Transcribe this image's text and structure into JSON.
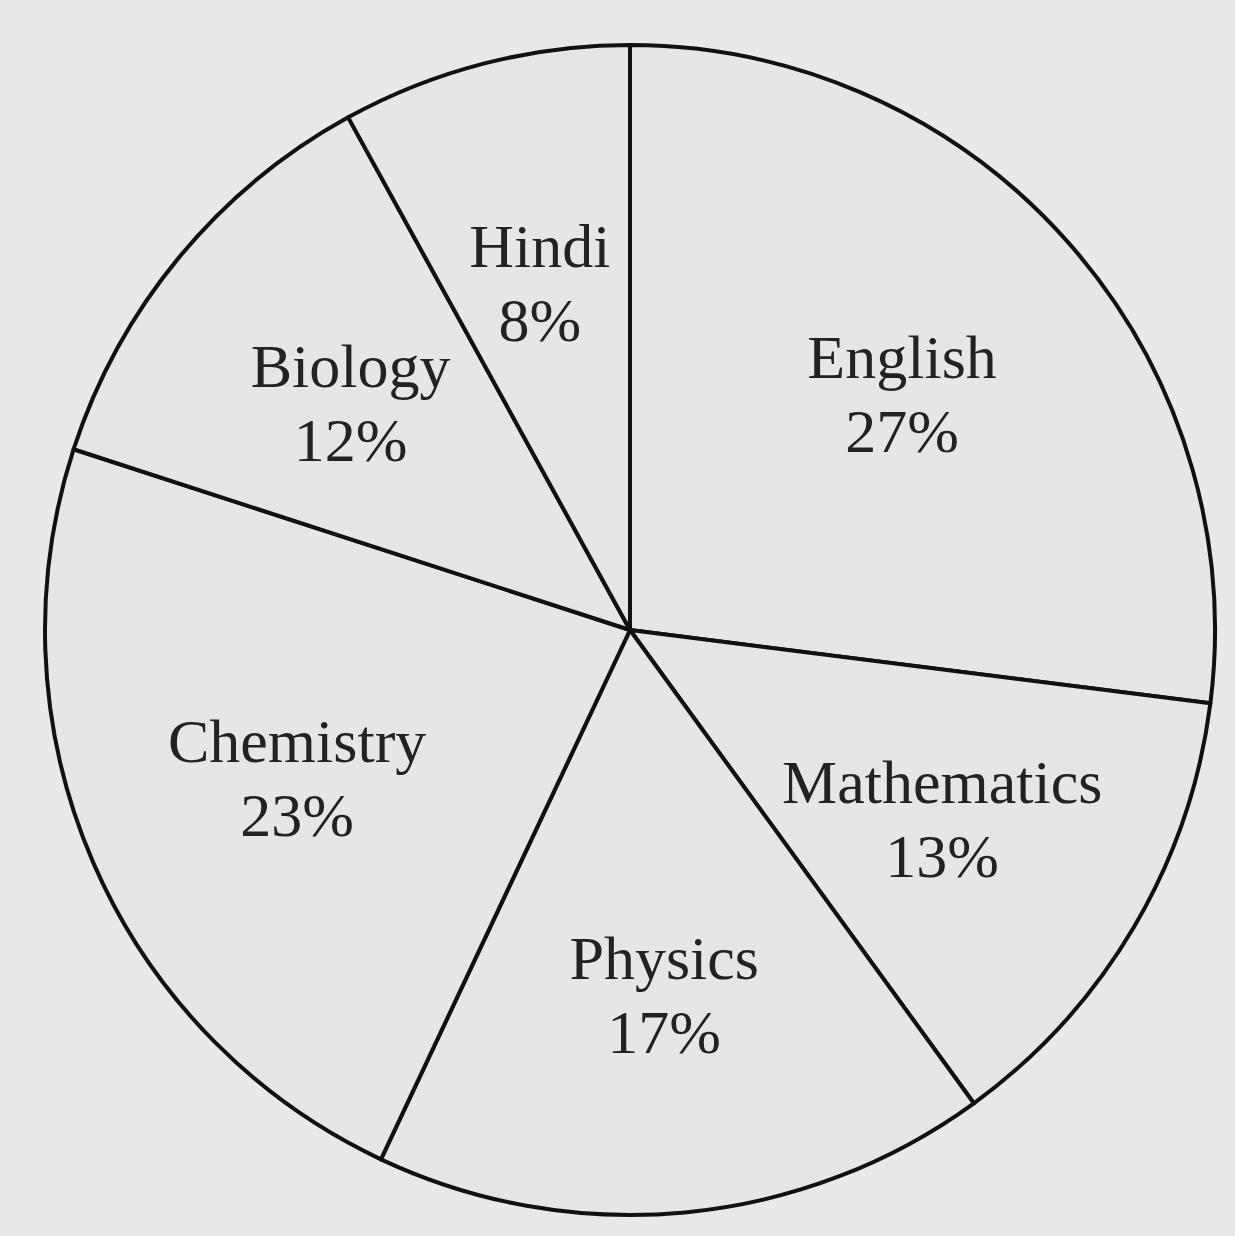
{
  "chart_data": {
    "type": "pie",
    "categories": [
      "English",
      "Mathematics",
      "Physics",
      "Chemistry",
      "Biology",
      "Hindi"
    ],
    "values": [
      27,
      13,
      17,
      23,
      12,
      8
    ],
    "value_labels": [
      "27%",
      "13%",
      "17%",
      "23%",
      "12%",
      "8%"
    ],
    "colors": [
      "#e6e6e6",
      "#e6e6e6",
      "#e6e6e6",
      "#e6e6e6",
      "#e6e6e6",
      "#e6e6e6"
    ]
  }
}
